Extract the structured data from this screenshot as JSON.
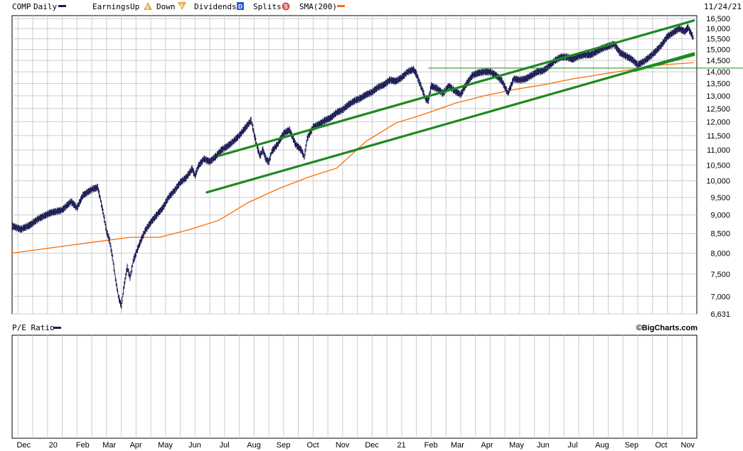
{
  "legend": {
    "symbol": "COMP",
    "frequency": "Daily",
    "earnings_label": "Earnings",
    "earnings_up": "Up",
    "earnings_up_icon": "E",
    "earnings_down": "Down",
    "earnings_down_icon": "E",
    "dividends_label": "Dividends",
    "dividends_icon": "D",
    "splits_label": "Splits",
    "splits_icon": "S",
    "sma_label": "SMA(200)"
  },
  "date_label": "11/24/21",
  "pe_label": "P/E Ratio",
  "brand": "©BigCharts.com",
  "colors": {
    "price": "#1c1c54",
    "sma": "#ff6a00",
    "trend": "#1e8a1e",
    "grid": "#cccccc",
    "earnings_icon": "#e8a23c",
    "dividends_icon": "#2a5bd7",
    "splits_icon": "#d9534f"
  },
  "chart_data": {
    "type": "line",
    "series": [
      {
        "name": "COMP",
        "points": [
          [
            0,
            8700
          ],
          [
            3,
            8610
          ],
          [
            6,
            8720
          ],
          [
            9,
            8900
          ],
          [
            13,
            9060
          ],
          [
            17,
            9140
          ],
          [
            20,
            9380
          ],
          [
            22,
            9200
          ],
          [
            24,
            9560
          ],
          [
            27,
            9740
          ],
          [
            29,
            9800
          ],
          [
            30,
            9420
          ],
          [
            31,
            9000
          ],
          [
            32,
            8560
          ],
          [
            33,
            8320
          ],
          [
            34,
            7900
          ],
          [
            35,
            7400
          ],
          [
            36,
            7000
          ],
          [
            37,
            6800
          ],
          [
            38,
            7250
          ],
          [
            39,
            7650
          ],
          [
            40,
            7420
          ],
          [
            41,
            7800
          ],
          [
            43,
            8200
          ],
          [
            45,
            8560
          ],
          [
            47,
            8800
          ],
          [
            49,
            9000
          ],
          [
            51,
            9190
          ],
          [
            53,
            9500
          ],
          [
            55,
            9700
          ],
          [
            57,
            9950
          ],
          [
            59,
            10100
          ],
          [
            61,
            10380
          ],
          [
            62,
            10150
          ],
          [
            63,
            10450
          ],
          [
            65,
            10700
          ],
          [
            67,
            10610
          ],
          [
            69,
            10780
          ],
          [
            71,
            11000
          ],
          [
            73,
            11130
          ],
          [
            75,
            11300
          ],
          [
            77,
            11500
          ],
          [
            79,
            11770
          ],
          [
            81,
            12050
          ],
          [
            82,
            11550
          ],
          [
            83,
            11100
          ],
          [
            84,
            10800
          ],
          [
            85,
            11000
          ],
          [
            86,
            10700
          ],
          [
            87,
            10600
          ],
          [
            88,
            10950
          ],
          [
            90,
            11200
          ],
          [
            92,
            11580
          ],
          [
            94,
            11700
          ],
          [
            96,
            11200
          ],
          [
            98,
            11000
          ],
          [
            99,
            10750
          ],
          [
            100,
            11400
          ],
          [
            102,
            11800
          ],
          [
            104,
            11900
          ],
          [
            106,
            12050
          ],
          [
            108,
            12150
          ],
          [
            110,
            12350
          ],
          [
            112,
            12450
          ],
          [
            114,
            12650
          ],
          [
            116,
            12800
          ],
          [
            118,
            12900
          ],
          [
            120,
            13050
          ],
          [
            122,
            13150
          ],
          [
            124,
            13350
          ],
          [
            126,
            13450
          ],
          [
            128,
            13650
          ],
          [
            130,
            13600
          ],
          [
            132,
            13750
          ],
          [
            134,
            14000
          ],
          [
            136,
            14100
          ],
          [
            137,
            13900
          ],
          [
            138,
            13550
          ],
          [
            139,
            13250
          ],
          [
            140,
            12900
          ],
          [
            141,
            12800
          ],
          [
            142,
            13400
          ],
          [
            144,
            13300
          ],
          [
            146,
            13100
          ],
          [
            148,
            13400
          ],
          [
            150,
            13200
          ],
          [
            152,
            13050
          ],
          [
            154,
            13500
          ],
          [
            156,
            13850
          ],
          [
            158,
            13950
          ],
          [
            160,
            14000
          ],
          [
            162,
            14000
          ],
          [
            164,
            13850
          ],
          [
            166,
            13600
          ],
          [
            167,
            13350
          ],
          [
            168,
            13100
          ],
          [
            170,
            13700
          ],
          [
            172,
            13650
          ],
          [
            174,
            13700
          ],
          [
            176,
            13850
          ],
          [
            178,
            14000
          ],
          [
            180,
            14050
          ],
          [
            182,
            14250
          ],
          [
            184,
            14500
          ],
          [
            186,
            14650
          ],
          [
            188,
            14650
          ],
          [
            190,
            14550
          ],
          [
            192,
            14700
          ],
          [
            194,
            14750
          ],
          [
            196,
            14750
          ],
          [
            198,
            14900
          ],
          [
            200,
            15050
          ],
          [
            202,
            15150
          ],
          [
            204,
            15250
          ],
          [
            205,
            15050
          ],
          [
            206,
            14850
          ],
          [
            208,
            14700
          ],
          [
            210,
            14550
          ],
          [
            212,
            14300
          ],
          [
            214,
            14450
          ],
          [
            216,
            14650
          ],
          [
            218,
            14900
          ],
          [
            220,
            15200
          ],
          [
            222,
            15600
          ],
          [
            224,
            15800
          ],
          [
            226,
            16000
          ],
          [
            228,
            15850
          ],
          [
            229,
            16050
          ],
          [
            230,
            15780
          ],
          [
            231,
            15500
          ]
        ]
      },
      {
        "name": "SMA(200)",
        "points": [
          [
            0,
            8000
          ],
          [
            20,
            8200
          ],
          [
            40,
            8400
          ],
          [
            50,
            8400
          ],
          [
            60,
            8600
          ],
          [
            70,
            8850
          ],
          [
            80,
            9350
          ],
          [
            90,
            9750
          ],
          [
            100,
            10100
          ],
          [
            110,
            10400
          ],
          [
            120,
            11300
          ],
          [
            130,
            11950
          ],
          [
            140,
            12300
          ],
          [
            150,
            12700
          ],
          [
            160,
            13000
          ],
          [
            170,
            13250
          ],
          [
            180,
            13450
          ],
          [
            190,
            13700
          ],
          [
            200,
            13900
          ],
          [
            210,
            14100
          ],
          [
            220,
            14300
          ],
          [
            231,
            14400
          ]
        ]
      }
    ],
    "trendlines": [
      {
        "from": [
          66,
          9650
        ],
        "to": [
          231,
          14820
        ]
      },
      {
        "from": [
          70,
          10800
        ],
        "to": [
          231,
          16400
        ]
      },
      {
        "from": [
          211,
          14050
        ],
        "to": [
          231,
          14750
        ]
      }
    ],
    "horizontal_line": {
      "from": 141,
      "to": 231,
      "y": 14160
    },
    "x_ticks": [
      {
        "label": "Dec",
        "x": 2
      },
      {
        "label": "20",
        "x": 12
      },
      {
        "label": "Feb",
        "x": 22
      },
      {
        "label": "Mar",
        "x": 31
      },
      {
        "label": "Apr",
        "x": 40
      },
      {
        "label": "May",
        "x": 50
      },
      {
        "label": "Jun",
        "x": 60
      },
      {
        "label": "Jul",
        "x": 70
      },
      {
        "label": "Aug",
        "x": 80
      },
      {
        "label": "Sep",
        "x": 90
      },
      {
        "label": "Oct",
        "x": 100
      },
      {
        "label": "Nov",
        "x": 110
      },
      {
        "label": "Dec",
        "x": 120
      },
      {
        "label": "21",
        "x": 130
      },
      {
        "label": "Feb",
        "x": 140
      },
      {
        "label": "Mar",
        "x": 149
      },
      {
        "label": "Apr",
        "x": 159
      },
      {
        "label": "May",
        "x": 169
      },
      {
        "label": "Jun",
        "x": 178
      },
      {
        "label": "Jul",
        "x": 188
      },
      {
        "label": "Aug",
        "x": 198
      },
      {
        "label": "Sep",
        "x": 208
      },
      {
        "label": "Oct",
        "x": 218
      },
      {
        "label": "Nov",
        "x": 227
      }
    ],
    "y_ticks": [
      {
        "label": "16,500",
        "v": 16500
      },
      {
        "label": "16,000",
        "v": 16000
      },
      {
        "label": "15,500",
        "v": 15500
      },
      {
        "label": "15,000",
        "v": 15000
      },
      {
        "label": "14,500",
        "v": 14500
      },
      {
        "label": "14,000",
        "v": 14000
      },
      {
        "label": "13,500",
        "v": 13500
      },
      {
        "label": "13,000",
        "v": 13000
      },
      {
        "label": "12,500",
        "v": 12500
      },
      {
        "label": "12,000",
        "v": 12000
      },
      {
        "label": "11,500",
        "v": 11500
      },
      {
        "label": "11,000",
        "v": 11000
      },
      {
        "label": "10,500",
        "v": 10500
      },
      {
        "label": "10,000",
        "v": 10000
      },
      {
        "label": "9,500",
        "v": 9500
      },
      {
        "label": "9,000",
        "v": 9000
      },
      {
        "label": "8,500",
        "v": 8500
      },
      {
        "label": "8,000",
        "v": 8000
      },
      {
        "label": "7,500",
        "v": 7500
      },
      {
        "label": "7,000",
        "v": 7000
      },
      {
        "label": "6,631",
        "v": 6631
      }
    ],
    "xlim": [
      0,
      232
    ],
    "ylim": [
      6631,
      16650
    ],
    "y_scale": "log",
    "grid": true
  }
}
